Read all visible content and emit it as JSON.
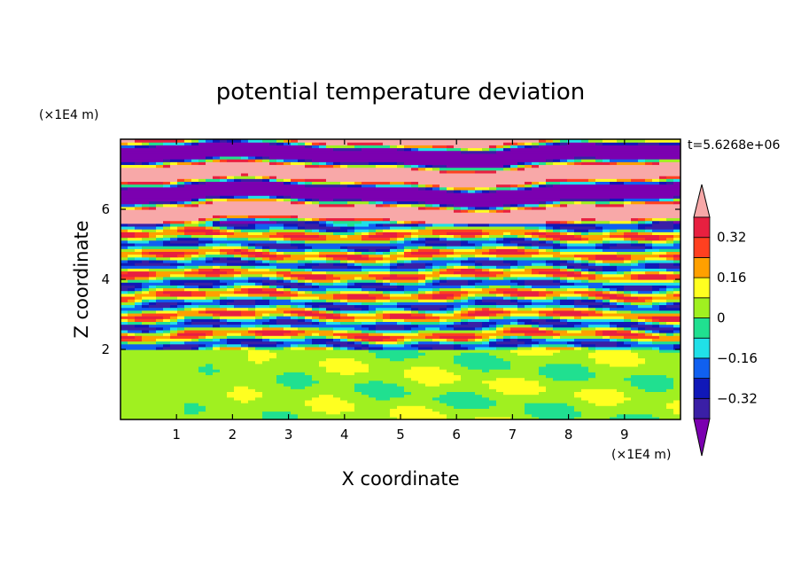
{
  "chart_data": {
    "type": "heatmap",
    "title": "potential temperature deviation",
    "xlabel": "X coordinate",
    "ylabel": "Z coordinate",
    "x_unit": "(×1E4 m)",
    "y_unit": "(×1E4 m)",
    "time_label": "t=5.6268e+06",
    "xlim": [
      0,
      10
    ],
    "ylim": [
      0,
      8
    ],
    "x_ticks": [
      "1",
      "2",
      "3",
      "4",
      "5",
      "6",
      "7",
      "8",
      "9"
    ],
    "y_ticks": [
      "2",
      "4",
      "6"
    ],
    "colorbar": {
      "levels": [
        -0.4,
        -0.32,
        -0.24,
        -0.16,
        -0.08,
        0,
        0.08,
        0.16,
        0.24,
        0.32,
        0.4
      ],
      "labels": [
        "0.32",
        "0.16",
        "0",
        "−0.16",
        "−0.32"
      ],
      "colors": [
        "#7b00b0",
        "#3a1fa6",
        "#1018b8",
        "#1060f0",
        "#20e0e8",
        "#20e090",
        "#a0f020",
        "#ffff20",
        "#ffa000",
        "#ff4020",
        "#e82040",
        "#f8a8a8"
      ],
      "extend": "both"
    }
  }
}
